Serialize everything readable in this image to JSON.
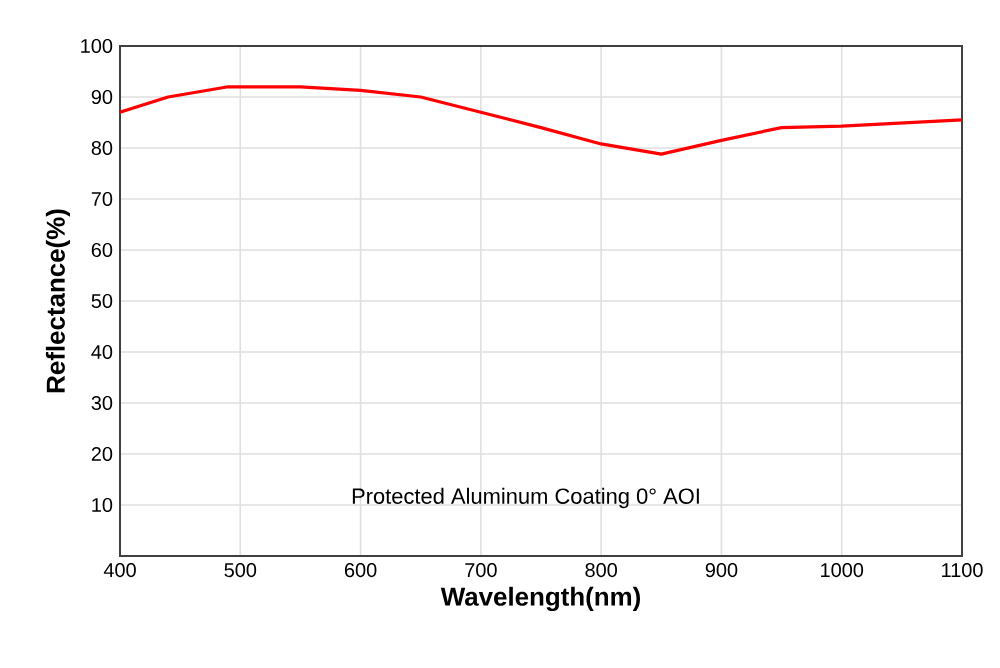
{
  "chart_data": {
    "type": "line",
    "xlabel": "Wavelength(nm)",
    "ylabel": "Reflectance(%)",
    "x": [
      400,
      440,
      490,
      550,
      600,
      650,
      700,
      750,
      800,
      850,
      900,
      950,
      1000,
      1100
    ],
    "series": [
      {
        "color": "#ff0000",
        "values": [
          87,
          90,
          92,
          92,
          91.3,
          90,
          87,
          84,
          80.8,
          78.8,
          81.5,
          84,
          84.3,
          85.5
        ]
      }
    ],
    "xlim": [
      400,
      1100
    ],
    "ylim": [
      0,
      100
    ],
    "xticks": [
      400,
      500,
      600,
      700,
      800,
      900,
      1000,
      1100
    ],
    "yticks": [
      10,
      20,
      30,
      40,
      50,
      60,
      70,
      80,
      90,
      100
    ],
    "grid": true,
    "marker": "none",
    "line_style": "solid",
    "annotations": [
      "Protected Aluminum Coating  0°  AOI"
    ]
  }
}
